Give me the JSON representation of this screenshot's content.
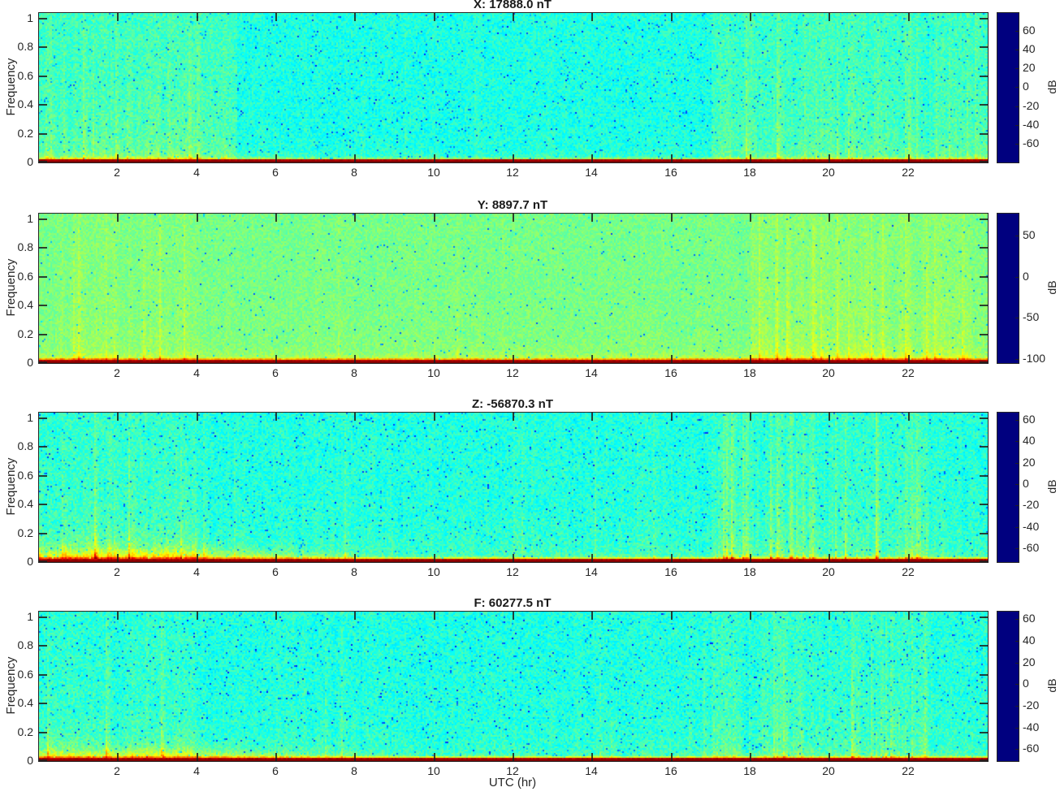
{
  "app": {
    "type": "matlab-figure",
    "description": "Four stacked 24-hour magnetometer spectrograms (X, Y, Z, F components) with jet colormap and dB colorbars"
  },
  "style": {
    "background": "#ffffff",
    "text_color": "#262626",
    "frame_color": "#262626"
  },
  "chart_data": {
    "type": "heatmap",
    "subtype": "spectrogram",
    "colormap": "jet",
    "colormap_stops": [
      [
        "#00007f",
        0
      ],
      [
        "#0000ff",
        0.125
      ],
      [
        "#00ffff",
        0.375
      ],
      [
        "#ffff00",
        0.625
      ],
      [
        "#ff0000",
        0.875
      ],
      [
        "#7f0000",
        1
      ]
    ],
    "grid": false,
    "x": {
      "label": "UTC (hr)",
      "range": [
        0,
        24
      ],
      "ticks": [
        2,
        4,
        6,
        8,
        10,
        12,
        14,
        16,
        18,
        20,
        22
      ]
    },
    "y": {
      "label": "Frequency",
      "range": [
        0,
        1
      ],
      "ticks": [
        0,
        0.2,
        0.4,
        0.6,
        0.8,
        1
      ],
      "display_max": 1.04
    },
    "panels": [
      {
        "id": "X",
        "title": "X: 17888.0 nT",
        "mean_value_nT": 17888.0,
        "colorbar": {
          "label": "dB",
          "min": -80,
          "max": 79,
          "ticks": [
            60,
            40,
            20,
            0,
            -20,
            -40,
            -60
          ]
        },
        "features": "Cyan-blue broadband noise floor near -15 dB; greener streaked columns 0-5 h and 17-24 h; thin yellow band below 0.05 and dark-red DC line at frequency 0",
        "render": {
          "seed": 101,
          "bg": -12,
          "noise": 8,
          "dot_prob": 0.028,
          "dot_depth": 22,
          "band_amp": 36,
          "scale_left": 0.022,
          "scale_right": 0.016,
          "taper": [
            5,
            9
          ],
          "pre_dc_boost": 10,
          "regions": [
            {
              "to": 5,
              "amp": 6,
              "bias": 3,
              "spike": 0.12,
              "samp": 7
            },
            {
              "to": 17,
              "amp": 2.5,
              "bias": -7,
              "spike": 0.02,
              "samp": 5
            },
            {
              "to": 24,
              "amp": 5,
              "bias": 1,
              "spike": 0.1,
              "samp": 7
            }
          ]
        }
      },
      {
        "id": "Y",
        "title": "Y: 8897.7 nT",
        "mean_value_nT": 8897.7,
        "colorbar": {
          "label": "dB",
          "min": -105,
          "max": 77,
          "ticks": [
            50,
            0,
            -50,
            -100
          ]
        },
        "features": "Greenish noise floor near -15 dB; yellow vertical streaks 18-23.5 h; bright yellow row just above dark-red DC line",
        "render": {
          "seed": 202,
          "bg": -15,
          "noise": 7,
          "dot_prob": 0.012,
          "dot_depth": 32,
          "band_amp": 52,
          "scale_left": 0.02,
          "scale_right": 0.02,
          "taper": [
            0,
            1
          ],
          "pre_dc_boost": 20,
          "regions": [
            {
              "to": 4,
              "amp": 5,
              "bias": 1,
              "spike": 0.08,
              "samp": 8
            },
            {
              "to": 18,
              "amp": 2.5,
              "bias": -1,
              "spike": 0.02,
              "samp": 5
            },
            {
              "to": 23.6,
              "amp": 6,
              "bias": 4,
              "spike": 0.16,
              "samp": 9
            },
            {
              "to": 24,
              "amp": 3,
              "bias": 0,
              "spike": 0,
              "samp": 0
            }
          ]
        }
      },
      {
        "id": "Z",
        "title": "Z: -56870.3 nT",
        "mean_value_nT": -56870.3,
        "colorbar": {
          "label": "dB",
          "min": -73,
          "max": 67,
          "ticks": [
            60,
            40,
            20,
            0,
            -20,
            -40,
            -60
          ]
        },
        "features": "Cyan noise floor near -15 dB; thick orange-yellow low-frequency band 0-4 h; dense yellow streaks 17-22.5 h with orange bottom dashes; dark-red DC line",
        "render": {
          "seed": 303,
          "bg": -15,
          "noise": 7.5,
          "dot_prob": 0.025,
          "dot_depth": 20,
          "band_amp": 55,
          "scale_left": 0.045,
          "scale_right": 0.016,
          "taper": [
            4,
            9
          ],
          "pre_dc_boost": 12,
          "regions": [
            {
              "to": 4,
              "amp": 5,
              "bias": 2,
              "spike": 0.1,
              "samp": 7
            },
            {
              "to": 17,
              "amp": 3,
              "bias": -2,
              "spike": 0.03,
              "samp": 5
            },
            {
              "to": 22.5,
              "amp": 8,
              "bias": 2,
              "spike": 0.2,
              "samp": 9
            },
            {
              "to": 24,
              "amp": 4,
              "bias": -1,
              "spike": 0.05,
              "samp": 5
            }
          ]
        }
      },
      {
        "id": "F",
        "title": "F: 60277.5 nT",
        "mean_value_nT": 60277.5,
        "colorbar": {
          "label": "dB",
          "min": -71,
          "max": 67,
          "ticks": [
            60,
            40,
            20,
            0,
            -20,
            -40,
            -60
          ]
        },
        "features": "Cyan noise floor near -14 dB; orange-yellow low-frequency band thicker 0-4 h; yellow streaks 17-22.5 h; dark-red DC line",
        "render": {
          "seed": 404,
          "bg": -14,
          "noise": 7.5,
          "dot_prob": 0.028,
          "dot_depth": 20,
          "band_amp": 50,
          "scale_left": 0.04,
          "scale_right": 0.015,
          "taper": [
            4,
            9
          ],
          "pre_dc_boost": 12,
          "regions": [
            {
              "to": 4,
              "amp": 4,
              "bias": 1,
              "spike": 0.08,
              "samp": 6
            },
            {
              "to": 17,
              "amp": 3,
              "bias": -2,
              "spike": 0.03,
              "samp": 5
            },
            {
              "to": 22.5,
              "amp": 7,
              "bias": 1,
              "spike": 0.18,
              "samp": 8
            },
            {
              "to": 24,
              "amp": 3,
              "bias": -1,
              "spike": 0.04,
              "samp": 5
            }
          ]
        }
      }
    ]
  }
}
